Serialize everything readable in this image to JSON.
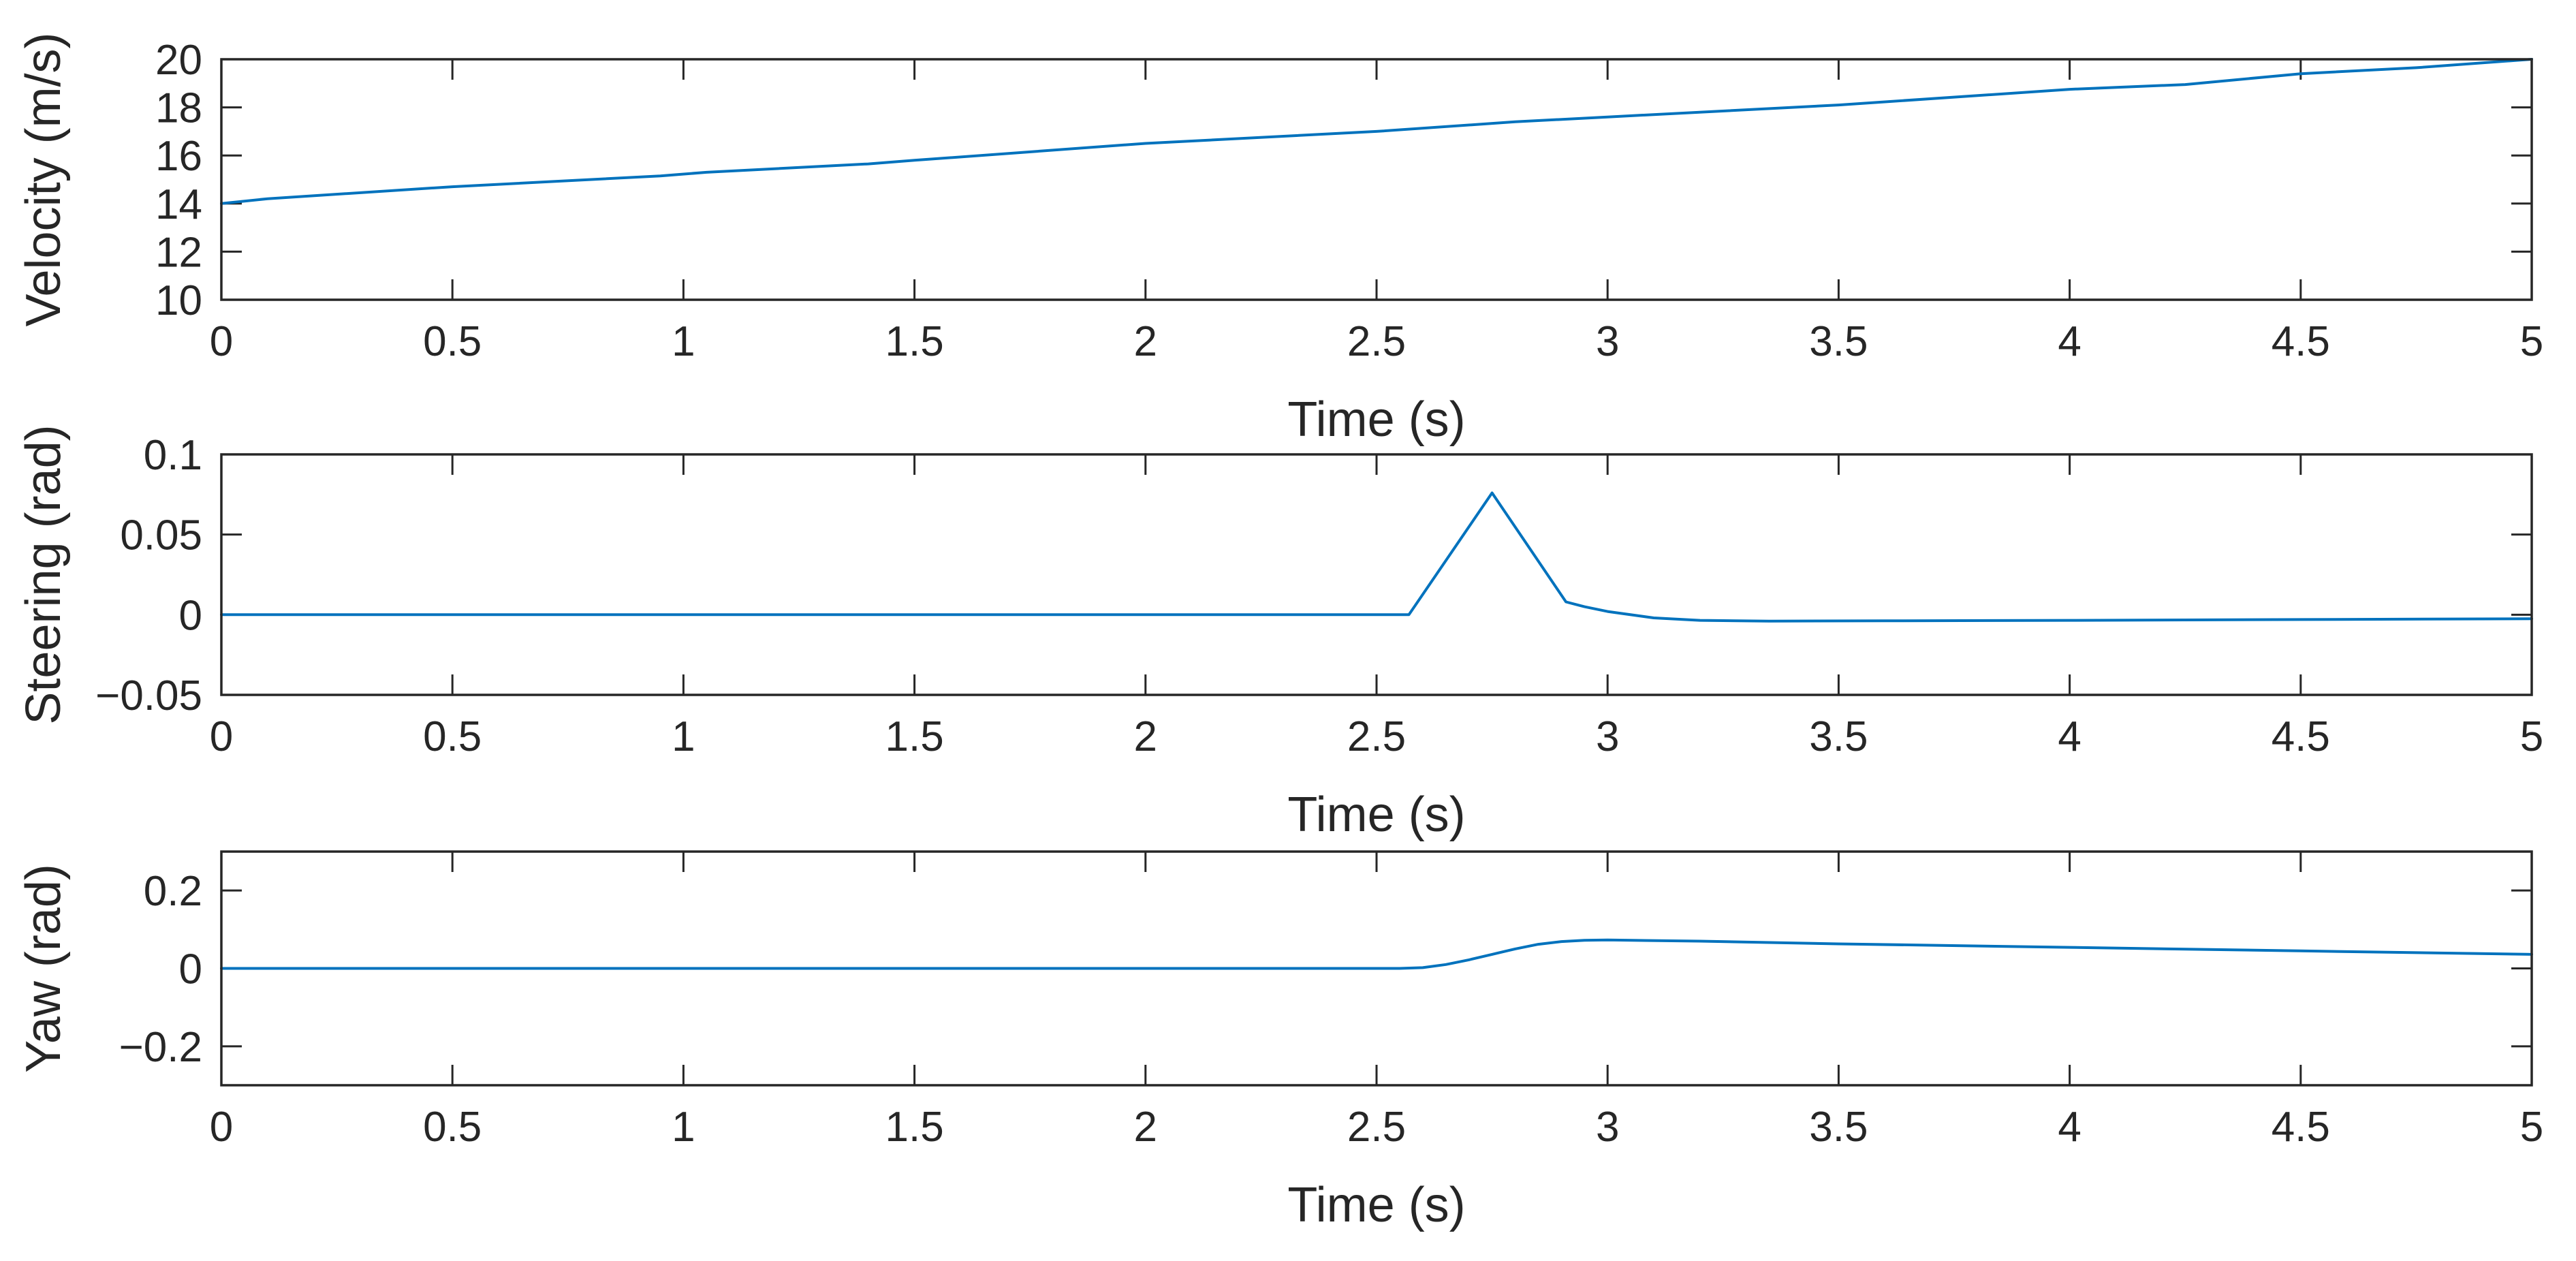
{
  "chart_data": [
    {
      "type": "line",
      "title": "",
      "xlabel": "Time (s)",
      "ylabel": "Velocity (m/s)",
      "xlim": [
        0,
        5
      ],
      "ylim": [
        10,
        20
      ],
      "xticks": [
        0,
        0.5,
        1,
        1.5,
        2,
        2.5,
        3,
        3.5,
        4,
        4.5,
        5
      ],
      "xtick_labels": [
        "0",
        "0.5",
        "1",
        "1.5",
        "2",
        "2.5",
        "3",
        "3.5",
        "4",
        "4.5",
        "5"
      ],
      "yticks": [
        10,
        12,
        14,
        16,
        18,
        20
      ],
      "ytick_labels": [
        "10",
        "12",
        "14",
        "16",
        "18",
        "20"
      ],
      "series": [
        {
          "name": "Velocity",
          "color": "#0072BD",
          "x": [
            0,
            0.1,
            0.5,
            0.95,
            1.05,
            1.4,
            1.5,
            2.0,
            2.5,
            2.8,
            3.0,
            3.5,
            4.0,
            4.25,
            4.5,
            4.75,
            5.0
          ],
          "y": [
            14.0,
            14.2,
            14.7,
            15.15,
            15.3,
            15.65,
            15.8,
            16.5,
            17.0,
            17.4,
            17.6,
            18.1,
            18.75,
            18.95,
            19.4,
            19.65,
            20.0
          ]
        }
      ]
    },
    {
      "type": "line",
      "title": "",
      "xlabel": "Time (s)",
      "ylabel": "Steering (rad)",
      "xlim": [
        0,
        5
      ],
      "ylim": [
        -0.05,
        0.1
      ],
      "xticks": [
        0,
        0.5,
        1,
        1.5,
        2,
        2.5,
        3,
        3.5,
        4,
        4.5,
        5
      ],
      "xtick_labels": [
        "0",
        "0.5",
        "1",
        "1.5",
        "2",
        "2.5",
        "3",
        "3.5",
        "4",
        "4.5",
        "5"
      ],
      "yticks": [
        -0.05,
        0,
        0.05,
        0.1
      ],
      "ytick_labels": [
        "-0.05",
        "0",
        "0.05",
        "0.1"
      ],
      "series": [
        {
          "name": "Steering",
          "color": "#0072BD",
          "x": [
            0,
            2.57,
            2.75,
            2.91,
            2.95,
            3.0,
            3.1,
            3.2,
            3.35,
            3.6,
            4.0,
            4.5,
            5.0
          ],
          "y": [
            0,
            0,
            0.076,
            0.008,
            0.005,
            0.002,
            -0.002,
            -0.0035,
            -0.004,
            -0.0038,
            -0.0035,
            -0.003,
            -0.0025
          ]
        }
      ]
    },
    {
      "type": "line",
      "title": "",
      "xlabel": "Time (s)",
      "ylabel": "Yaw (rad)",
      "xlim": [
        0,
        5
      ],
      "ylim": [
        -0.3,
        0.3
      ],
      "xticks": [
        0,
        0.5,
        1,
        1.5,
        2,
        2.5,
        3,
        3.5,
        4,
        4.5,
        5
      ],
      "xtick_labels": [
        "0",
        "0.5",
        "1",
        "1.5",
        "2",
        "2.5",
        "3",
        "3.5",
        "4",
        "4.5",
        "5"
      ],
      "yticks": [
        -0.2,
        0,
        0.2
      ],
      "ytick_labels": [
        "-0.2",
        "0",
        "0.2"
      ],
      "series": [
        {
          "name": "Yaw",
          "color": "#0072BD",
          "x": [
            0,
            2.55,
            2.6,
            2.65,
            2.7,
            2.75,
            2.8,
            2.85,
            2.9,
            2.95,
            3.0,
            3.2,
            3.5,
            4.0,
            4.5,
            5.0
          ],
          "y": [
            0,
            0,
            0.002,
            0.01,
            0.022,
            0.036,
            0.05,
            0.062,
            0.069,
            0.072,
            0.073,
            0.07,
            0.063,
            0.054,
            0.045,
            0.036
          ]
        }
      ]
    }
  ]
}
